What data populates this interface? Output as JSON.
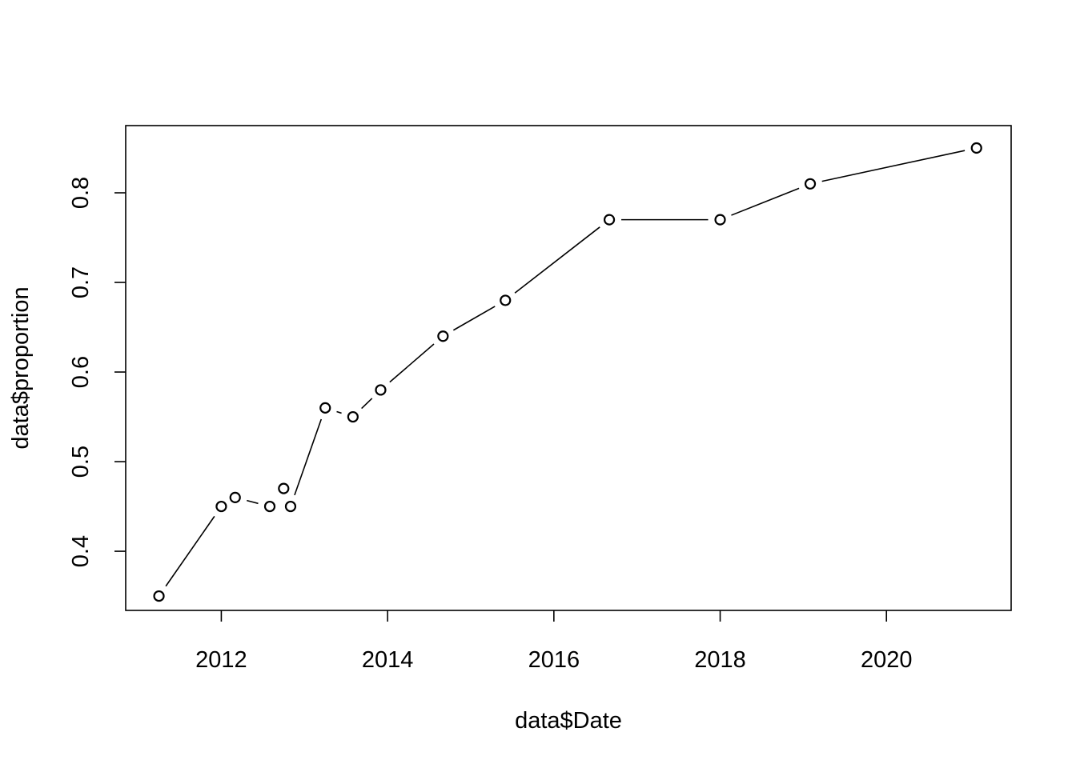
{
  "chart_data": {
    "type": "line",
    "marker": "open-circle",
    "line_style": "b",
    "xlabel": "data$Date",
    "ylabel": "data$proportion",
    "x_ticks": [
      "2012",
      "2014",
      "2016",
      "2018",
      "2020"
    ],
    "y_ticks": [
      "0.4",
      "0.5",
      "0.6",
      "0.7",
      "0.8"
    ],
    "series": [
      {
        "x": [
          "2011-04-01",
          "2012-01-01",
          "2012-03-01",
          "2012-08-01",
          "2012-10-01",
          "2012-11-01",
          "2013-04-01",
          "2013-08-01",
          "2013-12-01",
          "2014-09-01",
          "2015-06-01",
          "2016-09-01",
          "2018-01-01",
          "2019-02-01",
          "2021-02-01"
        ],
        "y": [
          0.35,
          0.45,
          0.46,
          0.45,
          0.47,
          0.45,
          0.56,
          0.55,
          0.58,
          0.64,
          0.68,
          0.77,
          0.77,
          0.81,
          0.85
        ]
      }
    ],
    "xlim": [
      2010.85,
      2021.5
    ],
    "ylim": [
      0.334,
      0.875
    ],
    "grid": false,
    "legend": "none",
    "colors": {
      "line": "#000000",
      "marker": "#000000",
      "background": "#ffffff"
    }
  }
}
